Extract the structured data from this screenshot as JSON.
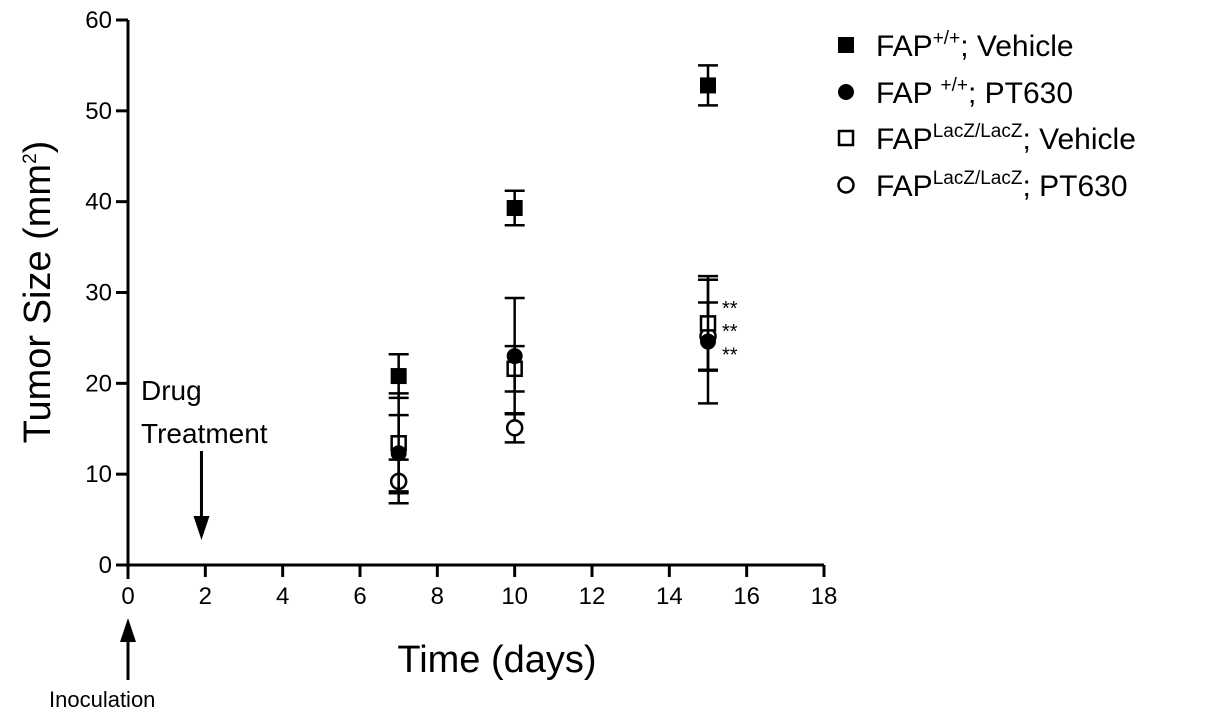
{
  "chart_data": {
    "type": "scatter",
    "xlabel": "Time (days)",
    "ylabel_main": "Tumor Size (mm",
    "ylabel_sup": "2",
    "ylabel_end": ")",
    "xlim": [
      0,
      18
    ],
    "ylim": [
      0,
      60
    ],
    "xticks": [
      0,
      2,
      4,
      6,
      8,
      10,
      12,
      14,
      16,
      18
    ],
    "yticks": [
      0,
      10,
      20,
      30,
      40,
      50,
      60
    ],
    "series": [
      {
        "legend_base": "FAP",
        "legend_sup": "+/+",
        "legend_rest": "; Vehicle",
        "marker": "square-filled",
        "x": [
          7,
          10,
          15
        ],
        "y": [
          20.8,
          39.3,
          52.8
        ],
        "err": [
          2.4,
          1.9,
          2.2
        ]
      },
      {
        "legend_base": "FAP ",
        "legend_sup": "+/+",
        "legend_rest": "; PT630",
        "marker": "circle-filled",
        "x": [
          7,
          10,
          15
        ],
        "y": [
          12.3,
          23.0,
          24.6
        ],
        "err": [
          4.2,
          6.4,
          6.8
        ]
      },
      {
        "legend_base": "FAP",
        "legend_sup": "LacZ/LacZ",
        "legend_rest": "; Vehicle",
        "marker": "square-open",
        "x": [
          7,
          10,
          15
        ],
        "y": [
          13.4,
          21.6,
          26.6
        ],
        "err": [
          5.5,
          2.5,
          5.2
        ]
      },
      {
        "legend_base": "FAP",
        "legend_sup": "LacZ/LacZ",
        "legend_rest": "; PT630",
        "marker": "circle-open",
        "x": [
          7,
          10,
          15
        ],
        "y": [
          9.2,
          15.1,
          25.2
        ],
        "err": [
          2.4,
          1.6,
          3.7
        ]
      }
    ],
    "significance": [
      "**",
      "**",
      "**"
    ],
    "annotations": {
      "drug_line1": "Drug",
      "drug_line2": "Treatment",
      "drug_day": 1.9,
      "inoculation": "Inoculation",
      "inoculation_day": 0
    }
  }
}
